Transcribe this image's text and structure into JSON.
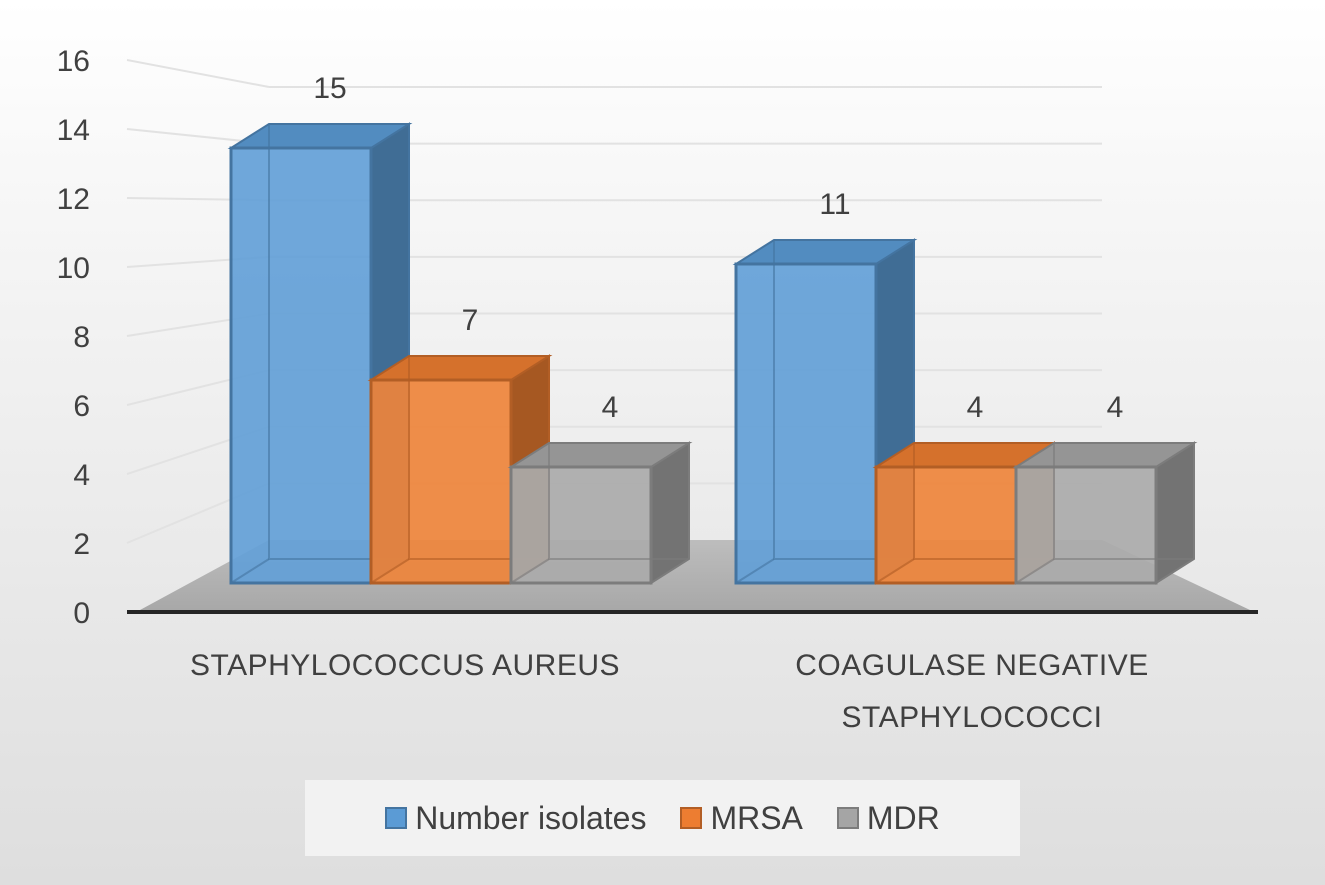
{
  "chart_data": {
    "type": "bar",
    "style": "3d-clustered-column",
    "categories": [
      "STAPHYLOCOCCUS AUREUS",
      "COAGULASE NEGATIVE STAPHYLOCOCCI"
    ],
    "series": [
      {
        "name": "Number isolates",
        "values": [
          15,
          11
        ],
        "color": "#5b9bd5"
      },
      {
        "name": "MRSA",
        "values": [
          7,
          4
        ],
        "color": "#ed7d31"
      },
      {
        "name": "MDR",
        "values": [
          4,
          4
        ],
        "color": "#a5a5a5"
      }
    ],
    "ylim": [
      0,
      16
    ],
    "yticks": [
      0,
      2,
      4,
      6,
      8,
      10,
      12,
      14,
      16
    ],
    "grid": true,
    "legend": "bottom",
    "title": "",
    "xlabel": "",
    "ylabel": ""
  }
}
